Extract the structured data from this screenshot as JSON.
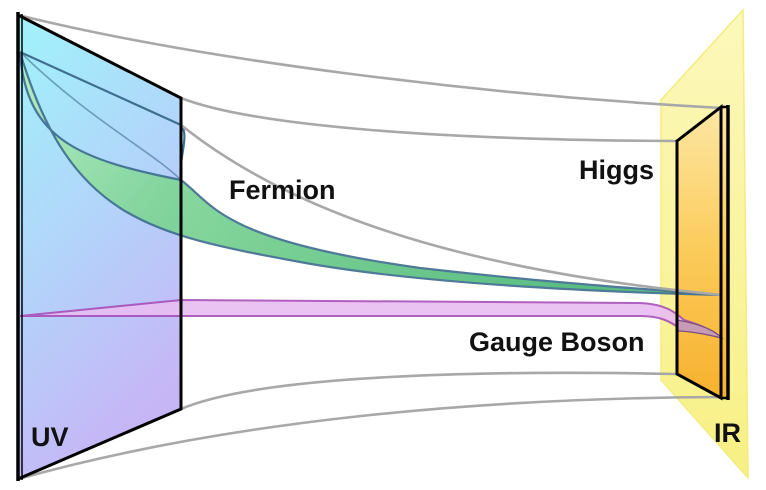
{
  "labels": {
    "uv": "UV",
    "ir": "IR",
    "higgs": "Higgs",
    "fermion": "Fermion",
    "gauge_boson": "Gauge Boson"
  },
  "colors": {
    "uv_brane_top": "#9ff3fb",
    "uv_brane_bottom": "#c4b8f7",
    "ir_sheet": "#fbf69a",
    "ir_brane_top": "#fde39a",
    "ir_brane_bottom": "#f8b634",
    "fermion_fill": "#6fd08f",
    "fermion_edge": "#3f6f8f",
    "gauge_fill": "#e6b6f0",
    "gauge_edge": "#a84fb8",
    "bulk_lines": "#a8a8a8",
    "outline": "#000000"
  }
}
